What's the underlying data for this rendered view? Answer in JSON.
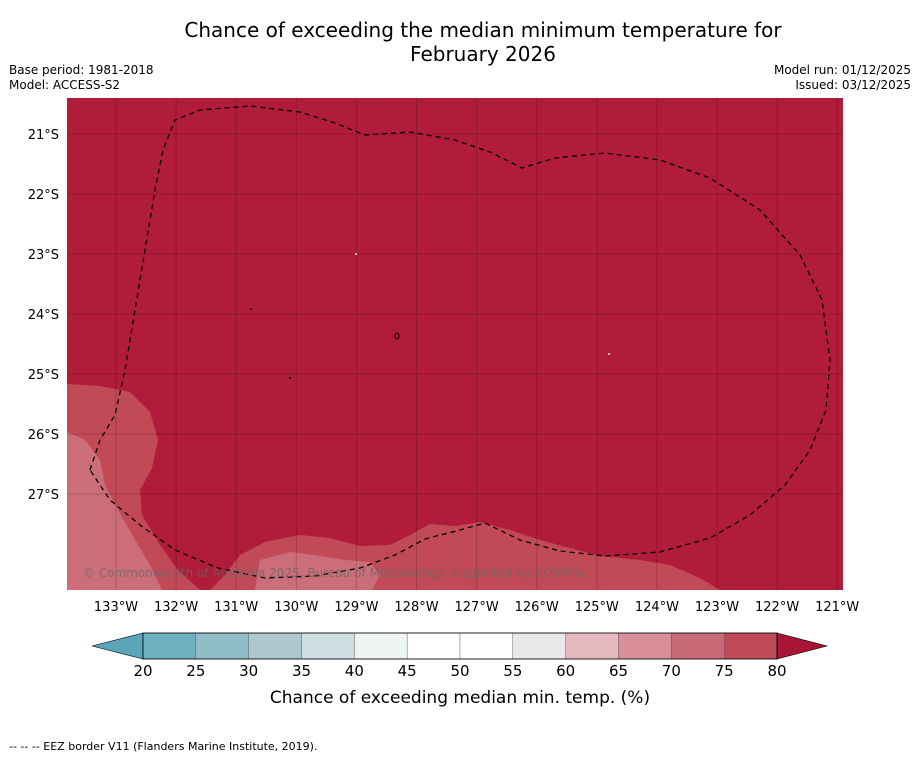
{
  "title": "Chance of exceeding the median minimum temperature for February 2026",
  "title_lines": [
    "Chance of exceeding the median minimum temperature for",
    "February 2026"
  ],
  "meta": {
    "base_period": "Base period: 1981-2018",
    "model": "Model: ACCESS-S2",
    "model_run": "Model run: 01/12/2025",
    "issued": "Issued: 03/12/2025"
  },
  "map": {
    "credit": "© Commonwealth of Australia 2025, Bureau of Meteorology, supported by COSPPac",
    "longitude_labels": [
      "133°W",
      "132°W",
      "131°W",
      "130°W",
      "129°W",
      "128°W",
      "127°W",
      "126°W",
      "125°W",
      "124°W",
      "123°W",
      "122°W",
      "121°W"
    ],
    "latitude_labels": [
      "21°S",
      "22°S",
      "23°S",
      "24°S",
      "25°S",
      "26°S",
      "27°S"
    ],
    "field_color": "#b11c3a"
  },
  "colorbar": {
    "title": "Chance of exceeding median min. temp. (%)",
    "ticks": [
      "20",
      "25",
      "30",
      "35",
      "40",
      "45",
      "50",
      "55",
      "60",
      "65",
      "70",
      "75",
      "80"
    ],
    "colors": [
      "#5aa5b8",
      "#6fb0c0",
      "#8fbcc7",
      "#adc9ce",
      "#cddde0",
      "#eef3f4",
      "#ffffff",
      "#ffffff",
      "#e9e9e9",
      "#e4b9bf",
      "#d98f99",
      "#c96a77",
      "#bf4b58",
      "#a81535"
    ]
  },
  "footnote": "-- -- -- EEZ border V11 (Flanders Marine Institute, 2019)."
}
